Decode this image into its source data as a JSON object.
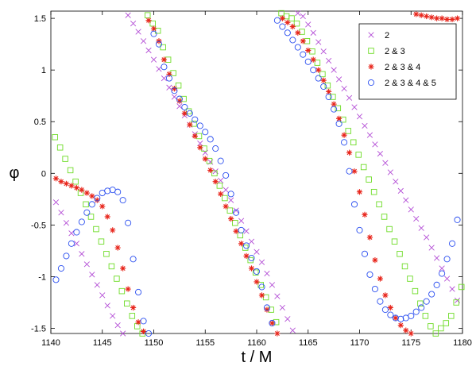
{
  "chart_data": {
    "type": "scatter",
    "title": "",
    "xlabel": "t / M",
    "ylabel": "φ",
    "xlim": [
      1140,
      1180
    ],
    "ylim": [
      -1.55,
      1.57
    ],
    "xticks": [
      1140,
      1145,
      1150,
      1155,
      1160,
      1165,
      1170,
      1175,
      1180
    ],
    "xtick_labels": [
      "1140",
      "1145",
      "1150",
      "1155",
      "1160",
      "1165",
      "1170",
      "1175",
      "1180"
    ],
    "yticks": [
      -1.5,
      -1,
      -0.5,
      0,
      0.5,
      1,
      1.5
    ],
    "ytick_labels": [
      "-1.5",
      "-1",
      "-0.5",
      "0",
      "0.5",
      "1",
      "1.5"
    ],
    "grid": false,
    "legend_position": "top-right",
    "series": [
      {
        "name": "2",
        "marker": "x",
        "color": "#b44fd6",
        "x": [
          1140.5,
          1141.0,
          1141.5,
          1142.0,
          1142.5,
          1143.0,
          1143.5,
          1144.0,
          1144.5,
          1145.0,
          1145.5,
          1146.0,
          1146.5,
          1147.0,
          1147.5,
          1148.0,
          1148.5,
          1149.0,
          1149.5,
          1150.0,
          1150.5,
          1151.0,
          1151.5,
          1152.0,
          1152.5,
          1153.0,
          1153.5,
          1154.0,
          1154.5,
          1155.0,
          1155.5,
          1156.0,
          1156.5,
          1157.0,
          1157.5,
          1158.0,
          1158.5,
          1159.0,
          1159.5,
          1160.0,
          1160.5,
          1161.0,
          1161.5,
          1162.0,
          1162.5,
          1163.0,
          1163.5,
          1164.0,
          1164.5,
          1165.0,
          1165.5,
          1166.0,
          1166.5,
          1167.0,
          1167.5,
          1168.0,
          1168.5,
          1169.0,
          1169.5,
          1170.0,
          1170.5,
          1171.0,
          1171.5,
          1172.0,
          1172.5,
          1173.0,
          1173.5,
          1174.0,
          1174.5,
          1175.0,
          1175.5,
          1176.0,
          1176.5,
          1177.0,
          1177.5,
          1178.0,
          1178.5,
          1179.0,
          1179.5
        ],
        "y": [
          -0.28,
          -0.38,
          -0.48,
          -0.58,
          -0.68,
          -0.78,
          -0.88,
          -0.98,
          -1.08,
          -1.18,
          -1.28,
          -1.38,
          -1.47,
          -1.55,
          1.53,
          1.45,
          1.37,
          1.28,
          1.19,
          1.1,
          1.01,
          0.92,
          0.83,
          0.74,
          0.65,
          0.56,
          0.47,
          0.38,
          0.29,
          0.2,
          0.11,
          0.02,
          -0.07,
          -0.16,
          -0.26,
          -0.36,
          -0.46,
          -0.56,
          -0.66,
          -0.76,
          -0.86,
          -0.97,
          -1.08,
          -1.19,
          -1.3,
          -1.41,
          -1.52,
          1.55,
          1.52,
          1.44,
          1.36,
          1.27,
          1.18,
          1.09,
          1.0,
          0.91,
          0.82,
          0.73,
          0.64,
          0.55,
          0.46,
          0.37,
          0.28,
          0.19,
          0.1,
          0.01,
          -0.08,
          -0.17,
          -0.26,
          -0.35,
          -0.44,
          -0.53,
          -0.62,
          -0.72,
          -0.82,
          -0.92,
          -1.02,
          -1.12,
          -1.23
        ]
      },
      {
        "name": "2 & 3",
        "marker": "square",
        "color": "#6edc27",
        "x": [
          1140.4,
          1140.9,
          1141.4,
          1141.9,
          1142.4,
          1142.9,
          1143.4,
          1143.9,
          1144.4,
          1144.9,
          1145.4,
          1145.9,
          1146.4,
          1146.9,
          1147.4,
          1147.9,
          1148.4,
          1148.9,
          1149.4,
          1149.9,
          1150.4,
          1150.9,
          1151.4,
          1151.9,
          1152.4,
          1152.9,
          1153.4,
          1153.9,
          1154.4,
          1154.9,
          1155.4,
          1155.9,
          1156.4,
          1156.9,
          1157.4,
          1157.9,
          1158.4,
          1158.9,
          1159.4,
          1159.9,
          1160.4,
          1160.9,
          1161.4,
          1161.9,
          1162.4,
          1162.9,
          1163.4,
          1163.9,
          1164.4,
          1164.9,
          1165.4,
          1165.9,
          1166.4,
          1166.9,
          1167.4,
          1167.9,
          1168.4,
          1168.9,
          1169.4,
          1169.9,
          1170.4,
          1170.9,
          1171.4,
          1171.9,
          1172.4,
          1172.9,
          1173.4,
          1173.9,
          1174.4,
          1174.9,
          1175.4,
          1175.9,
          1176.4,
          1176.9,
          1177.4,
          1177.9,
          1178.4,
          1178.9,
          1179.4,
          1179.9
        ],
        "y": [
          0.35,
          0.25,
          0.14,
          0.03,
          -0.08,
          -0.19,
          -0.3,
          -0.42,
          -0.54,
          -0.66,
          -0.78,
          -0.9,
          -1.02,
          -1.14,
          -1.26,
          -1.38,
          -1.48,
          -1.55,
          1.53,
          1.45,
          1.38,
          1.22,
          1.1,
          0.97,
          0.85,
          0.72,
          0.6,
          0.48,
          0.36,
          0.24,
          0.12,
          0.0,
          -0.12,
          -0.24,
          -0.36,
          -0.48,
          -0.6,
          -0.72,
          -0.84,
          -0.96,
          -1.08,
          -1.2,
          -1.32,
          -1.44,
          1.55,
          1.52,
          1.5,
          1.45,
          1.37,
          1.28,
          1.18,
          1.07,
          0.96,
          0.85,
          0.74,
          0.63,
          0.52,
          0.41,
          0.3,
          0.18,
          0.06,
          -0.06,
          -0.18,
          -0.3,
          -0.42,
          -0.54,
          -0.66,
          -0.78,
          -0.9,
          -1.02,
          -1.14,
          -1.26,
          -1.38,
          -1.48,
          -1.55,
          -1.5,
          -1.45,
          -1.38,
          -1.25,
          -1.1
        ]
      },
      {
        "name": "2 & 3 & 4",
        "marker": "asterisk",
        "color": "#e8251b",
        "x": [
          1140.5,
          1141.0,
          1141.5,
          1142.0,
          1142.5,
          1143.0,
          1143.5,
          1144.0,
          1144.5,
          1145.0,
          1145.5,
          1146.0,
          1146.5,
          1147.0,
          1147.5,
          1148.0,
          1148.5,
          1149.0,
          1149.5,
          1150.0,
          1150.5,
          1151.0,
          1151.5,
          1152.0,
          1152.5,
          1153.0,
          1153.5,
          1154.0,
          1154.5,
          1155.0,
          1155.5,
          1156.0,
          1156.5,
          1157.0,
          1157.5,
          1158.0,
          1158.5,
          1159.0,
          1159.5,
          1160.0,
          1160.5,
          1161.0,
          1161.5,
          1162.0,
          1162.5,
          1163.0,
          1163.5,
          1164.0,
          1164.5,
          1165.0,
          1165.5,
          1166.0,
          1166.5,
          1167.0,
          1167.5,
          1168.0,
          1168.5,
          1169.0,
          1169.5,
          1170.0,
          1170.5,
          1171.0,
          1171.5,
          1172.0,
          1172.5,
          1173.0,
          1173.5,
          1174.0,
          1174.5,
          1175.0,
          1175.5,
          1176.0,
          1176.5,
          1177.0,
          1177.5,
          1178.0,
          1178.5,
          1179.0,
          1179.5
        ],
        "y": [
          -0.05,
          -0.08,
          -0.1,
          -0.12,
          -0.14,
          -0.16,
          -0.19,
          -0.22,
          -0.26,
          -0.32,
          -0.42,
          -0.55,
          -0.72,
          -0.92,
          -1.12,
          -1.3,
          -1.44,
          -1.53,
          1.48,
          1.4,
          1.28,
          1.1,
          0.96,
          0.82,
          0.7,
          0.58,
          0.47,
          0.36,
          0.25,
          0.14,
          0.03,
          -0.08,
          -0.2,
          -0.32,
          -0.44,
          -0.56,
          -0.68,
          -0.8,
          -0.92,
          -1.05,
          -1.18,
          -1.32,
          -1.45,
          -1.55,
          1.5,
          1.46,
          1.42,
          1.36,
          1.28,
          1.19,
          1.1,
          1.0,
          0.9,
          0.79,
          0.67,
          0.53,
          0.37,
          0.2,
          0.02,
          -0.18,
          -0.4,
          -0.62,
          -0.84,
          -1.02,
          -1.18,
          -1.3,
          -1.4,
          -1.47,
          -1.52,
          -1.55,
          1.54,
          1.53,
          1.52,
          1.51,
          1.5,
          1.5,
          1.49,
          1.49,
          1.5
        ]
      },
      {
        "name": "2 & 3 & 4 & 5",
        "marker": "circle",
        "color": "#2b4ff0",
        "x": [
          1140.5,
          1141.0,
          1141.5,
          1142.0,
          1142.5,
          1143.0,
          1143.5,
          1144.0,
          1144.5,
          1145.0,
          1145.5,
          1146.0,
          1146.5,
          1147.0,
          1147.5,
          1148.0,
          1148.5,
          1149.0,
          1149.5,
          1150.0,
          1150.5,
          1151.0,
          1151.5,
          1152.0,
          1152.5,
          1153.0,
          1153.5,
          1154.0,
          1154.5,
          1155.0,
          1155.5,
          1156.0,
          1156.5,
          1157.0,
          1157.5,
          1158.0,
          1158.5,
          1159.0,
          1159.5,
          1160.0,
          1160.5,
          1161.0,
          1161.5,
          1162.0,
          1162.5,
          1163.0,
          1163.5,
          1164.0,
          1164.5,
          1165.0,
          1165.5,
          1166.0,
          1166.5,
          1167.0,
          1167.5,
          1168.0,
          1168.5,
          1169.0,
          1169.5,
          1170.0,
          1170.5,
          1171.0,
          1171.5,
          1172.0,
          1172.5,
          1173.0,
          1173.5,
          1174.0,
          1174.5,
          1175.0,
          1175.5,
          1176.0,
          1176.5,
          1177.0,
          1177.5,
          1178.0,
          1178.5,
          1179.0,
          1179.5
        ],
        "y": [
          -1.03,
          -0.92,
          -0.8,
          -0.68,
          -0.57,
          -0.47,
          -0.38,
          -0.3,
          -0.24,
          -0.19,
          -0.17,
          -0.16,
          -0.18,
          -0.26,
          -0.48,
          -0.83,
          -1.15,
          -1.43,
          -1.55,
          1.35,
          1.25,
          1.03,
          0.92,
          0.8,
          0.72,
          0.64,
          0.58,
          0.52,
          0.46,
          0.4,
          0.33,
          0.24,
          0.12,
          -0.02,
          -0.2,
          -0.38,
          -0.55,
          -0.7,
          -0.82,
          -0.95,
          -1.1,
          -1.3,
          -1.45,
          1.48,
          1.42,
          1.36,
          1.29,
          1.22,
          1.15,
          1.08,
          1.0,
          0.92,
          0.84,
          0.74,
          0.62,
          0.48,
          0.3,
          0.02,
          -0.3,
          -0.55,
          -0.78,
          -0.98,
          -1.12,
          -1.24,
          -1.32,
          -1.37,
          -1.4,
          -1.41,
          -1.4,
          -1.38,
          -1.34,
          -1.3,
          -1.24,
          -1.17,
          -1.08,
          -0.97,
          -0.83,
          -0.68,
          -0.45
        ]
      }
    ]
  }
}
